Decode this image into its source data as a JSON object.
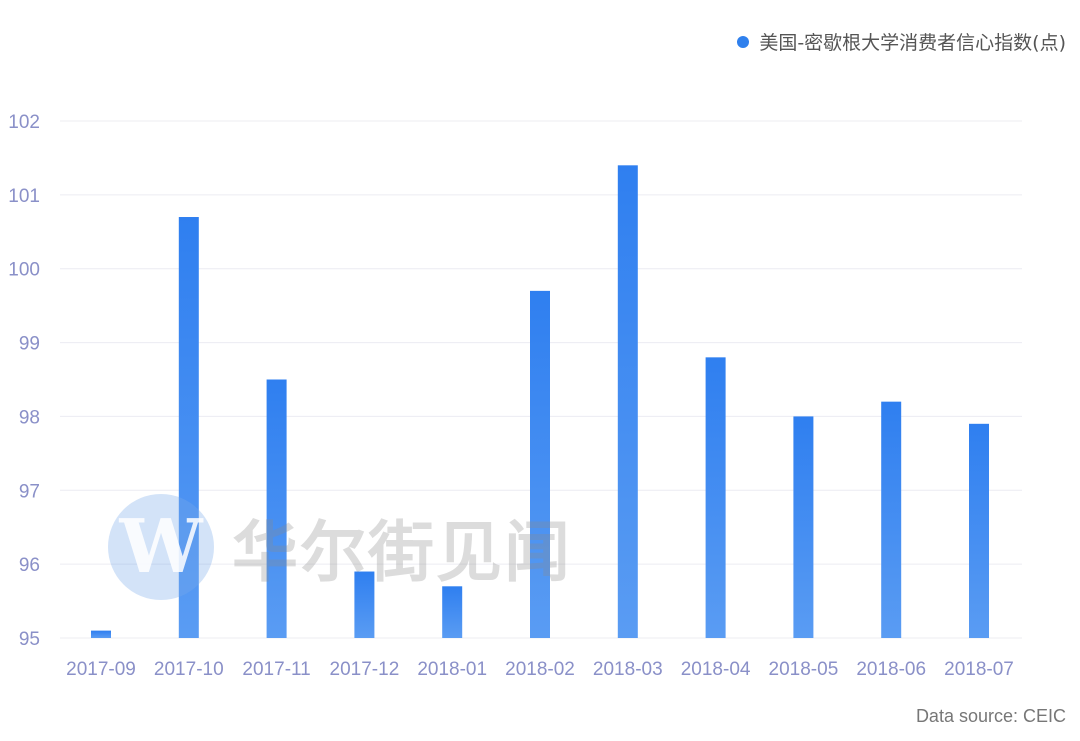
{
  "legend": {
    "label": "美国-密歇根大学消费者信心指数(点)"
  },
  "source": "Data source: CEIC",
  "watermark": {
    "logo_letter": "W",
    "text": "华尔街见闻"
  },
  "colors": {
    "bar_top": "#2f7ff0",
    "bar_bottom": "#5a9cf3",
    "legend_dot": "#2f80ed",
    "tick_text": "#8a90c8",
    "grid": "#ececf2"
  },
  "chart_data": {
    "type": "bar",
    "categories": [
      "2017-09",
      "2017-10",
      "2017-11",
      "2017-12",
      "2018-01",
      "2018-02",
      "2018-03",
      "2018-04",
      "2018-05",
      "2018-06",
      "2018-07"
    ],
    "series": [
      {
        "name": "美国-密歇根大学消费者信心指数(点)",
        "values": [
          95.1,
          100.7,
          98.5,
          95.9,
          95.7,
          99.7,
          101.4,
          98.8,
          98.0,
          98.2,
          97.9
        ]
      }
    ],
    "ylim": [
      95,
      102
    ],
    "yticks": [
      95,
      96,
      97,
      98,
      99,
      100,
      101,
      102
    ],
    "grid": true,
    "legend_position": "top-right"
  }
}
